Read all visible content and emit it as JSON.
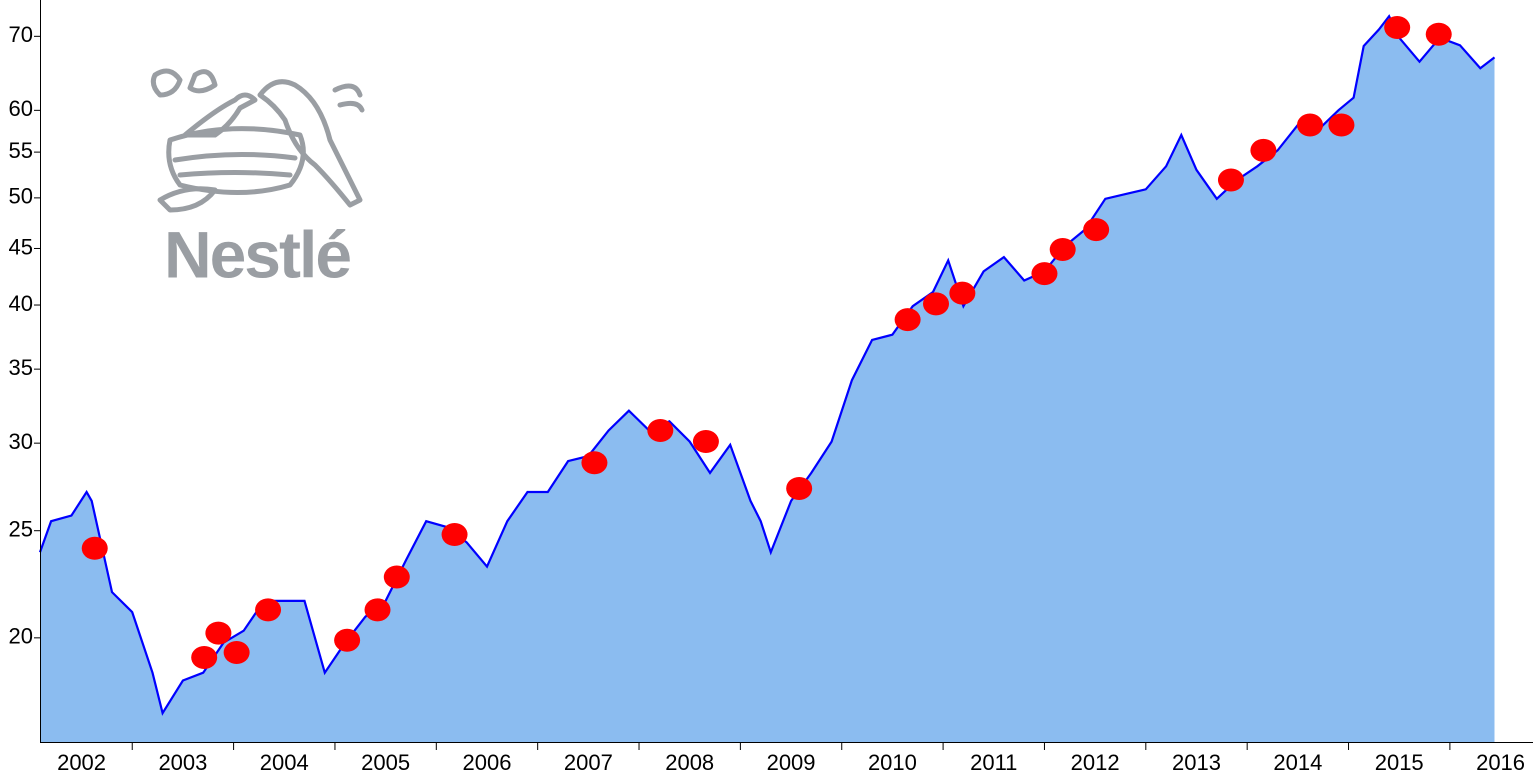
{
  "logo": {
    "text": "Nestlé"
  },
  "chart_data": {
    "type": "line",
    "log_scale": true,
    "xlim": [
      2002.09,
      2016.82
    ],
    "ylim": [
      16.1,
      75.5
    ],
    "xticks": [
      2002,
      2003,
      2004,
      2005,
      2006,
      2007,
      2008,
      2009,
      2010,
      2011,
      2012,
      2013,
      2014,
      2015,
      2016
    ],
    "yticks": [
      20,
      25,
      30,
      35,
      40,
      45,
      50,
      55,
      60,
      70
    ],
    "series": [
      {
        "color": "#0000ff",
        "fill": "#8bbcf0",
        "x": [
          2002.09,
          2002.2,
          2002.4,
          2002.55,
          2002.6,
          2002.8,
          2003.0,
          2003.2,
          2003.3,
          2003.5,
          2003.7,
          2003.9,
          2004.1,
          2004.3,
          2004.5,
          2004.7,
          2004.9,
          2005.1,
          2005.3,
          2005.5,
          2005.7,
          2005.9,
          2006.1,
          2006.3,
          2006.5,
          2006.7,
          2006.9,
          2007.1,
          2007.3,
          2007.5,
          2007.7,
          2007.9,
          2008.1,
          2008.3,
          2008.5,
          2008.7,
          2008.9,
          2009.1,
          2009.2,
          2009.3,
          2009.5,
          2009.7,
          2009.9,
          2010.1,
          2010.3,
          2010.5,
          2010.7,
          2010.9,
          2011.05,
          2011.2,
          2011.4,
          2011.6,
          2011.8,
          2012.0,
          2012.2,
          2012.4,
          2012.6,
          2012.8,
          2013.0,
          2013.2,
          2013.35,
          2013.5,
          2013.7,
          2013.9,
          2014.1,
          2014.3,
          2014.5,
          2014.7,
          2014.9,
          2015.05,
          2015.15,
          2015.3,
          2015.4,
          2015.5,
          2015.7,
          2015.9,
          2016.1,
          2016.3,
          2016.44
        ],
        "values": [
          23.9,
          25.5,
          25.8,
          27.1,
          26.6,
          22.0,
          21.1,
          18.6,
          17.1,
          18.3,
          18.6,
          19.8,
          20.3,
          21.6,
          21.6,
          21.6,
          18.6,
          19.8,
          20.9,
          21.6,
          23.5,
          25.5,
          25.2,
          24.4,
          23.2,
          25.5,
          27.1,
          27.1,
          28.9,
          29.2,
          30.8,
          32.1,
          30.8,
          31.4,
          30.1,
          28.2,
          29.9,
          26.6,
          25.5,
          23.9,
          26.6,
          28.2,
          30.1,
          34.2,
          37.2,
          37.6,
          39.9,
          41.1,
          43.9,
          39.9,
          42.9,
          44.2,
          42.1,
          42.9,
          45.2,
          46.8,
          49.9,
          50.4,
          50.9,
          53.4,
          57.0,
          53.0,
          49.9,
          51.9,
          53.4,
          55.2,
          58.2,
          57.6,
          60.0,
          61.6,
          68.6,
          71.0,
          73.0,
          69.8,
          66.4,
          69.8,
          68.7,
          65.5,
          67.0
        ]
      }
    ],
    "markers": {
      "color": "#ff0000",
      "x": [
        2002.63,
        2003.71,
        2003.85,
        2004.03,
        2004.34,
        2005.12,
        2005.42,
        2005.61,
        2006.18,
        2007.56,
        2008.21,
        2008.66,
        2009.58,
        2010.65,
        2010.93,
        2011.19,
        2012.0,
        2012.18,
        2012.51,
        2013.84,
        2014.16,
        2014.62,
        2014.93,
        2015.48,
        2015.89
      ],
      "values": [
        24.1,
        19.2,
        20.2,
        19.4,
        21.2,
        19.9,
        21.2,
        22.7,
        24.8,
        28.8,
        30.8,
        30.1,
        27.3,
        38.8,
        40.1,
        41.0,
        42.7,
        44.9,
        46.8,
        51.9,
        55.2,
        58.2,
        58.2,
        71.3,
        70.3
      ]
    }
  }
}
